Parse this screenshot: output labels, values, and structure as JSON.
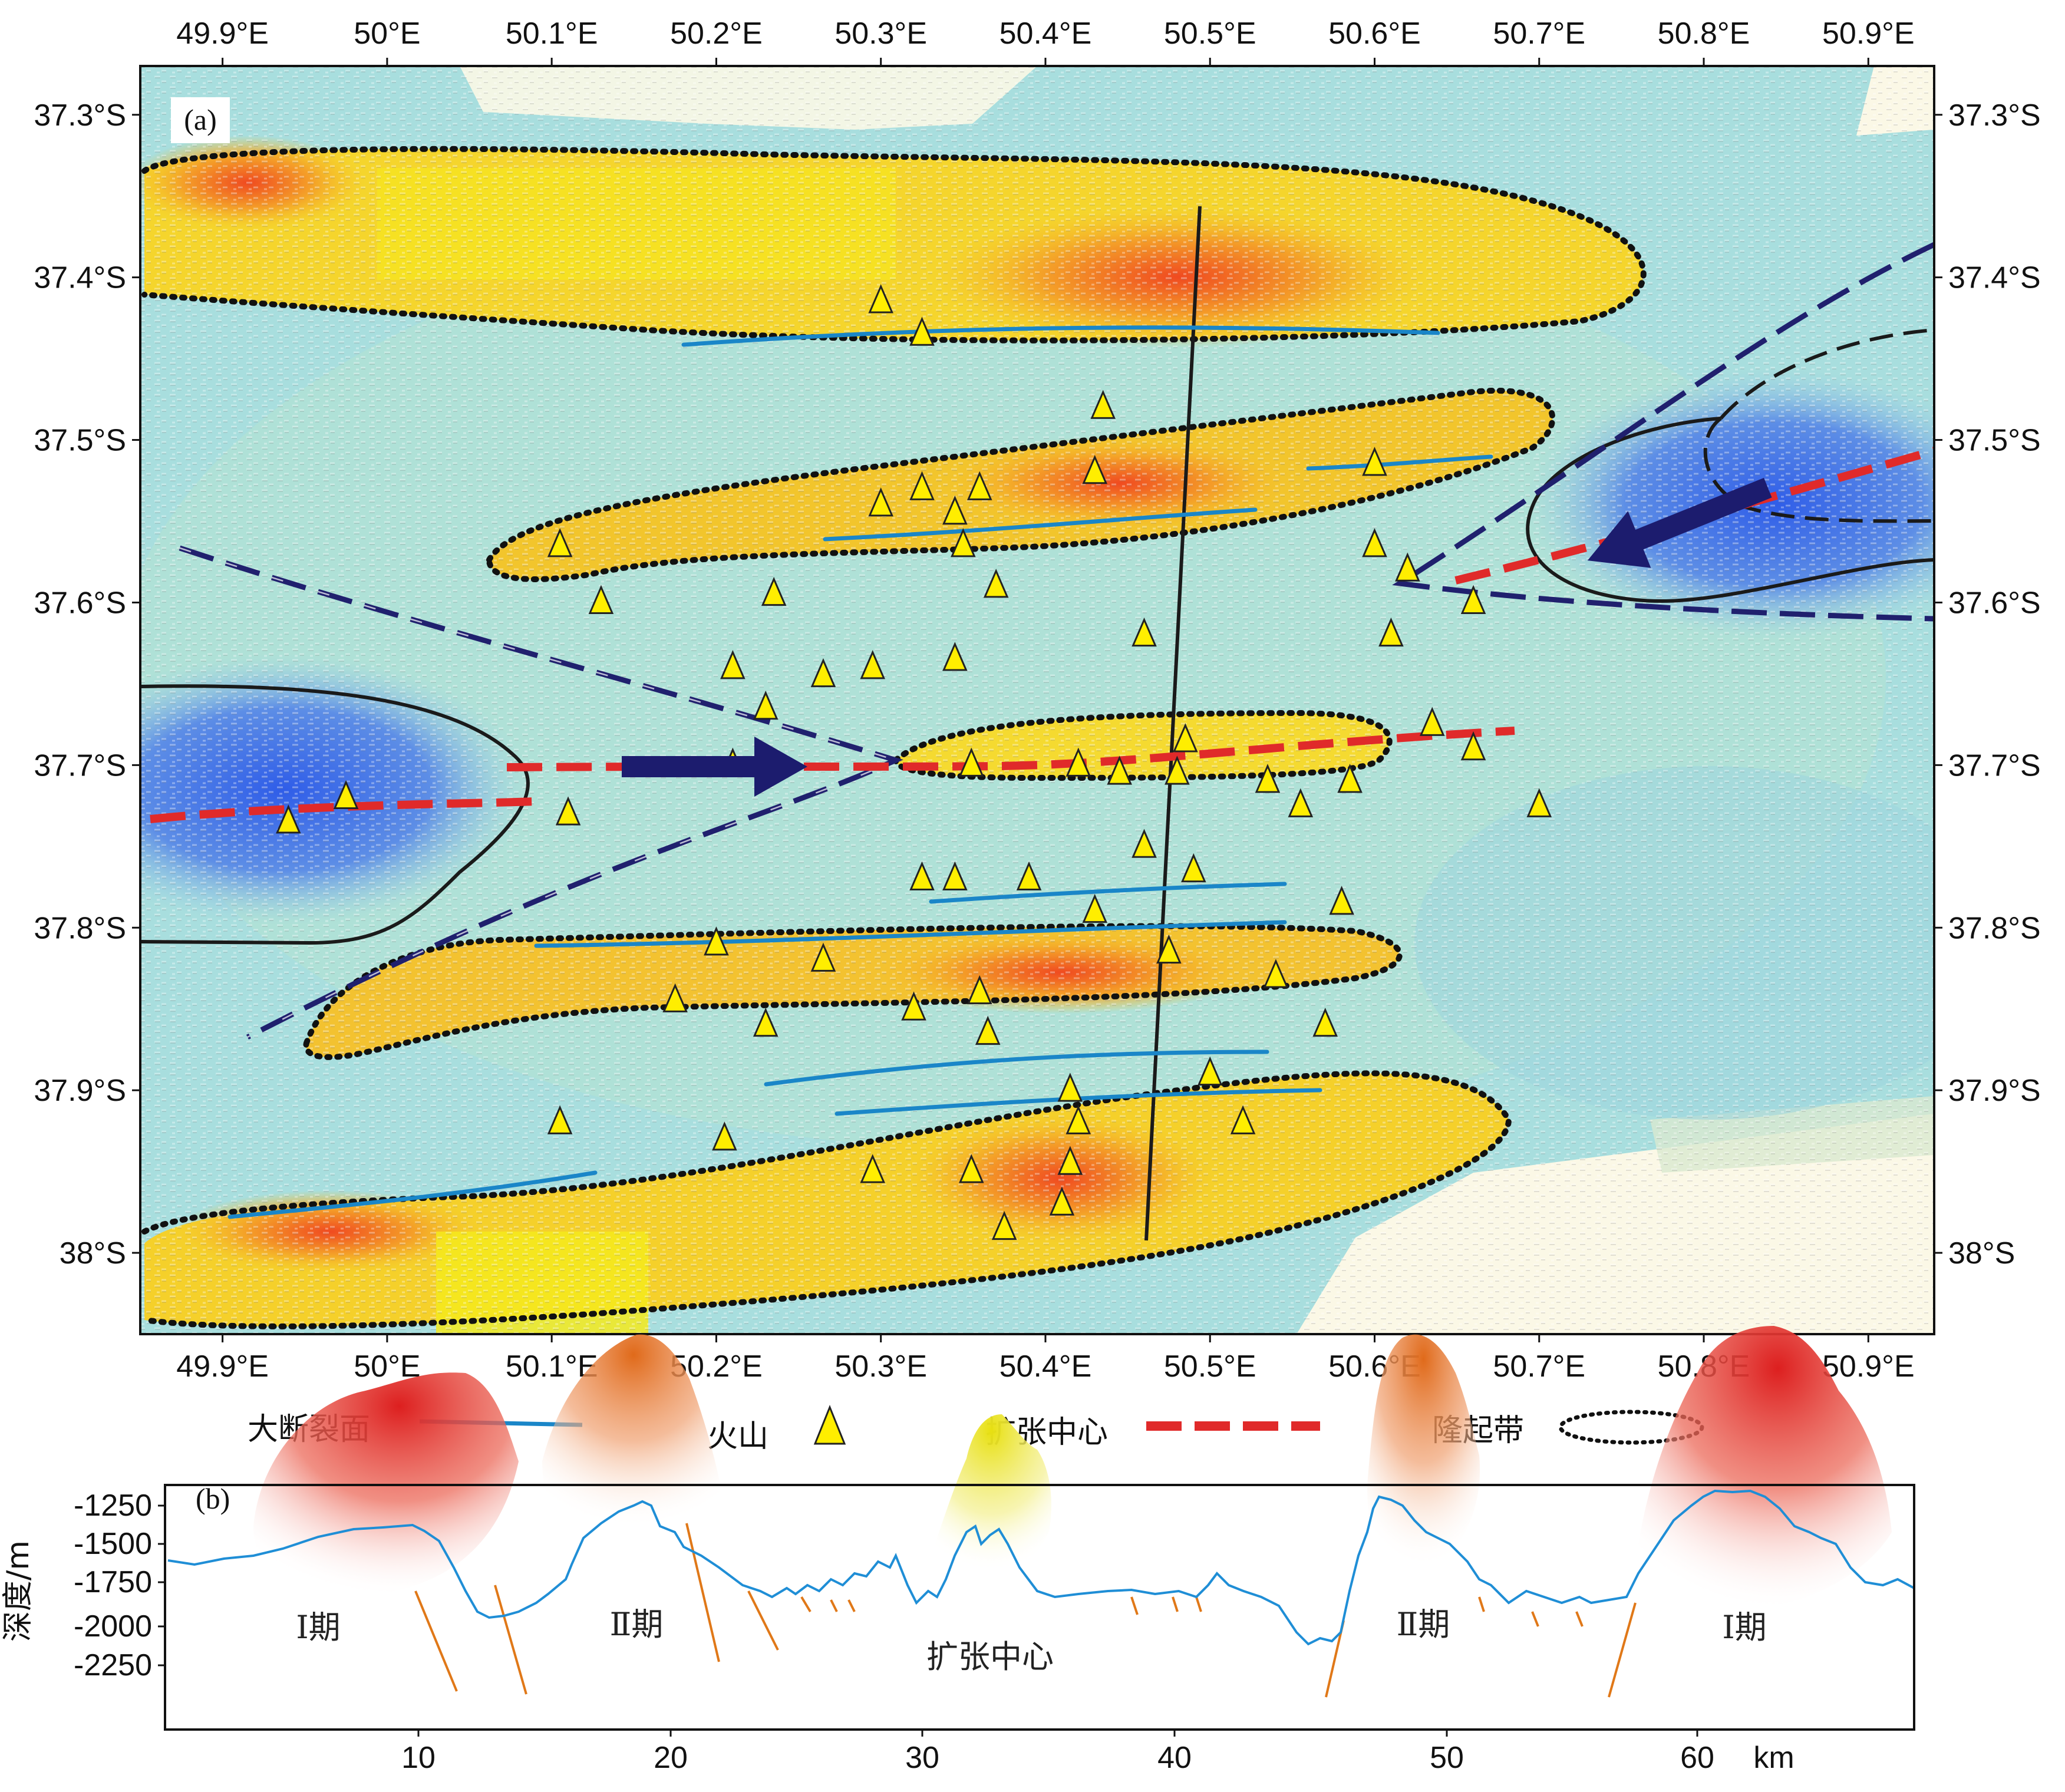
{
  "panel_a": {
    "label": "(a)",
    "lon_ticks_top": [
      "49.9°E",
      "50°E",
      "50.1°E",
      "50.2°E",
      "50.3°E",
      "50.4°E",
      "50.5°E",
      "50.6°E",
      "50.7°E",
      "50.8°E",
      "50.9°E"
    ],
    "lon_ticks_bottom": [
      "49.9°E",
      "50°E",
      "50.1°E",
      "50.2°E",
      "50.3°E",
      "50.4°E",
      "50.5°E",
      "50.6°E",
      "50.7°E",
      "50.8°E",
      "50.9°E"
    ],
    "lat_ticks": [
      "37.3°S",
      "37.4°S",
      "37.5°S",
      "37.6°S",
      "37.7°S",
      "37.8°S",
      "37.9°S",
      "38°S"
    ],
    "lon_range": [
      49.85,
      50.94
    ],
    "lat_range": [
      -38.05,
      -37.27
    ],
    "volcanoes": [
      [
        50.3,
        -37.415
      ],
      [
        50.325,
        -37.435
      ],
      [
        50.435,
        -37.48
      ],
      [
        50.43,
        -37.52
      ],
      [
        50.6,
        -37.515
      ],
      [
        50.325,
        -37.53
      ],
      [
        50.36,
        -37.53
      ],
      [
        50.3,
        -37.54
      ],
      [
        50.345,
        -37.545
      ],
      [
        50.35,
        -37.565
      ],
      [
        50.105,
        -37.565
      ],
      [
        50.6,
        -37.565
      ],
      [
        50.62,
        -37.58
      ],
      [
        50.235,
        -37.595
      ],
      [
        50.37,
        -37.59
      ],
      [
        50.13,
        -37.6
      ],
      [
        50.66,
        -37.6
      ],
      [
        50.61,
        -37.62
      ],
      [
        50.46,
        -37.62
      ],
      [
        50.21,
        -37.64
      ],
      [
        50.295,
        -37.64
      ],
      [
        50.345,
        -37.635
      ],
      [
        50.265,
        -37.645
      ],
      [
        50.23,
        -37.665
      ],
      [
        50.635,
        -37.675
      ],
      [
        50.485,
        -37.685
      ],
      [
        50.66,
        -37.69
      ],
      [
        50.21,
        -37.7
      ],
      [
        50.355,
        -37.7
      ],
      [
        50.42,
        -37.7
      ],
      [
        50.445,
        -37.705
      ],
      [
        50.48,
        -37.705
      ],
      [
        50.535,
        -37.71
      ],
      [
        50.585,
        -37.71
      ],
      [
        49.975,
        -37.72
      ],
      [
        50.11,
        -37.73
      ],
      [
        50.555,
        -37.725
      ],
      [
        50.7,
        -37.725
      ],
      [
        49.94,
        -37.735
      ],
      [
        50.46,
        -37.75
      ],
      [
        50.49,
        -37.765
      ],
      [
        50.325,
        -37.77
      ],
      [
        50.345,
        -37.77
      ],
      [
        50.39,
        -37.77
      ],
      [
        50.58,
        -37.785
      ],
      [
        50.43,
        -37.79
      ],
      [
        50.2,
        -37.81
      ],
      [
        50.475,
        -37.815
      ],
      [
        50.265,
        -37.82
      ],
      [
        50.54,
        -37.83
      ],
      [
        50.36,
        -37.84
      ],
      [
        50.175,
        -37.845
      ],
      [
        50.32,
        -37.85
      ],
      [
        50.23,
        -37.86
      ],
      [
        50.57,
        -37.86
      ],
      [
        50.365,
        -37.865
      ],
      [
        50.5,
        -37.89
      ],
      [
        50.415,
        -37.9
      ],
      [
        50.105,
        -37.92
      ],
      [
        50.42,
        -37.92
      ],
      [
        50.52,
        -37.92
      ],
      [
        50.205,
        -37.93
      ],
      [
        50.415,
        -37.945
      ],
      [
        50.295,
        -37.95
      ],
      [
        50.355,
        -37.95
      ],
      [
        50.41,
        -37.97
      ],
      [
        50.375,
        -37.985
      ]
    ]
  },
  "legend": {
    "fault": "大断裂面",
    "volcano": "火山",
    "spreading_center": "扩张中心",
    "uplift_zone": "隆起带"
  },
  "panel_b": {
    "label": "(b)",
    "y_axis_label": "深度/m",
    "y_ticks": [
      "-1250",
      "-1500",
      "-1750",
      "-2000",
      "-2250"
    ],
    "x_ticks": [
      "10",
      "20",
      "30",
      "40",
      "50",
      "60"
    ],
    "x_unit": "km",
    "stage_labels": {
      "stage1_left": "Ⅰ期",
      "stage2_left": "Ⅱ期",
      "center": "扩张中心",
      "stage2_right": "Ⅱ期",
      "stage1_right": "Ⅰ期"
    },
    "colors": {
      "profile": "#1f8ed6",
      "fault": "#e07818",
      "stage1": "#e02020",
      "stage2": "#e07020",
      "center": "#f2e21a"
    }
  },
  "colors": {
    "fault_line": "#1a86c8",
    "spreading": "#e02a2a",
    "uplift_outline": "#111111",
    "arrow": "#1c1c6e",
    "volcano_fill": "#ffee00"
  }
}
